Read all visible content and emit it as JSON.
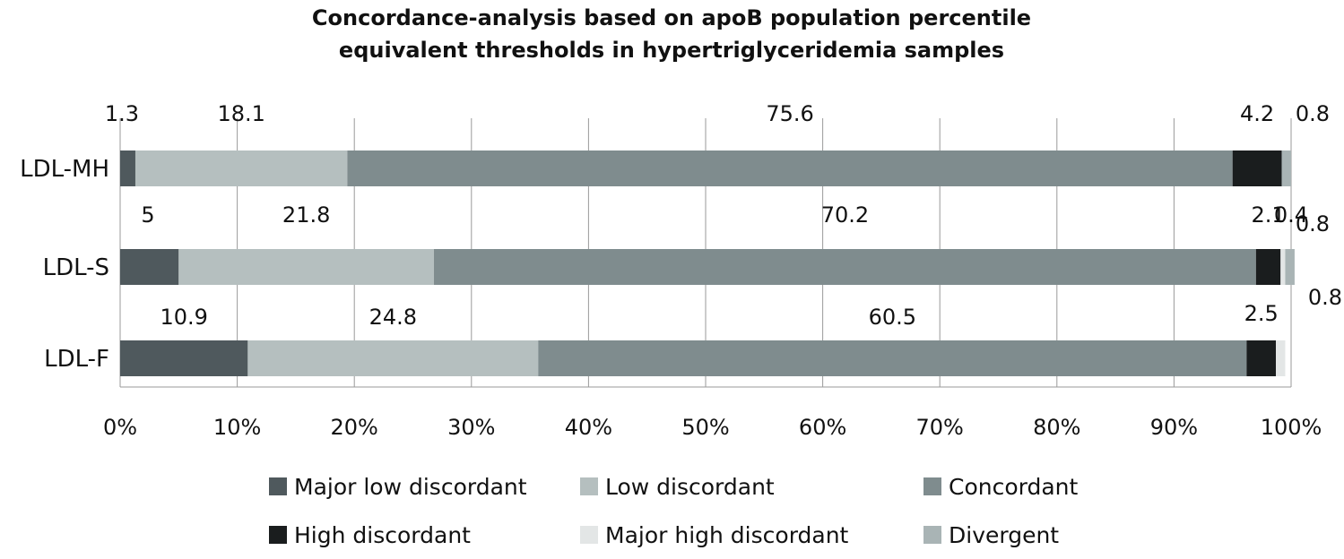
{
  "chart_data": {
    "type": "bar",
    "orientation": "horizontal",
    "stacked": "percent",
    "title_lines": [
      "Concordance-analysis based on apoB population percentile",
      "equivalent thresholds in hypertriglyceridemia samples"
    ],
    "categories": [
      "LDL-MH",
      "LDL-S",
      "LDL-F"
    ],
    "series": [
      {
        "name": "Major low discordant",
        "color": "#4f595d",
        "values": [
          1.3,
          5,
          10.9
        ],
        "labels": [
          "1.3",
          "5",
          "10.9"
        ]
      },
      {
        "name": "Low discordant",
        "color": "#b5bfbf",
        "values": [
          18.1,
          21.8,
          24.8
        ],
        "labels": [
          "18.1",
          "21.8",
          "24.8"
        ]
      },
      {
        "name": "Concordant",
        "color": "#7f8c8e",
        "values": [
          75.6,
          70.2,
          60.5
        ],
        "labels": [
          "75.6",
          "70.2",
          "60.5"
        ]
      },
      {
        "name": "High discordant",
        "color": "#1a1d1e",
        "values": [
          4.2,
          2.1,
          2.5
        ],
        "labels": [
          "4.2",
          "2.1",
          "2.5"
        ]
      },
      {
        "name": "Major high discordant",
        "color": "#e3e6e6",
        "values": [
          0,
          0.4,
          0.8
        ],
        "labels": [
          "",
          "0.4",
          "0.8"
        ]
      },
      {
        "name": "Divergent",
        "color": "#a9b4b5",
        "values": [
          0.8,
          0.8,
          0
        ],
        "labels": [
          "0.8",
          "0.8",
          ""
        ]
      }
    ],
    "x_ticks": [
      "0%",
      "10%",
      "20%",
      "30%",
      "40%",
      "50%",
      "60%",
      "70%",
      "80%",
      "90%",
      "100%"
    ],
    "xlim": [
      0,
      100
    ],
    "grid": "vertical",
    "legend_position": "bottom"
  }
}
